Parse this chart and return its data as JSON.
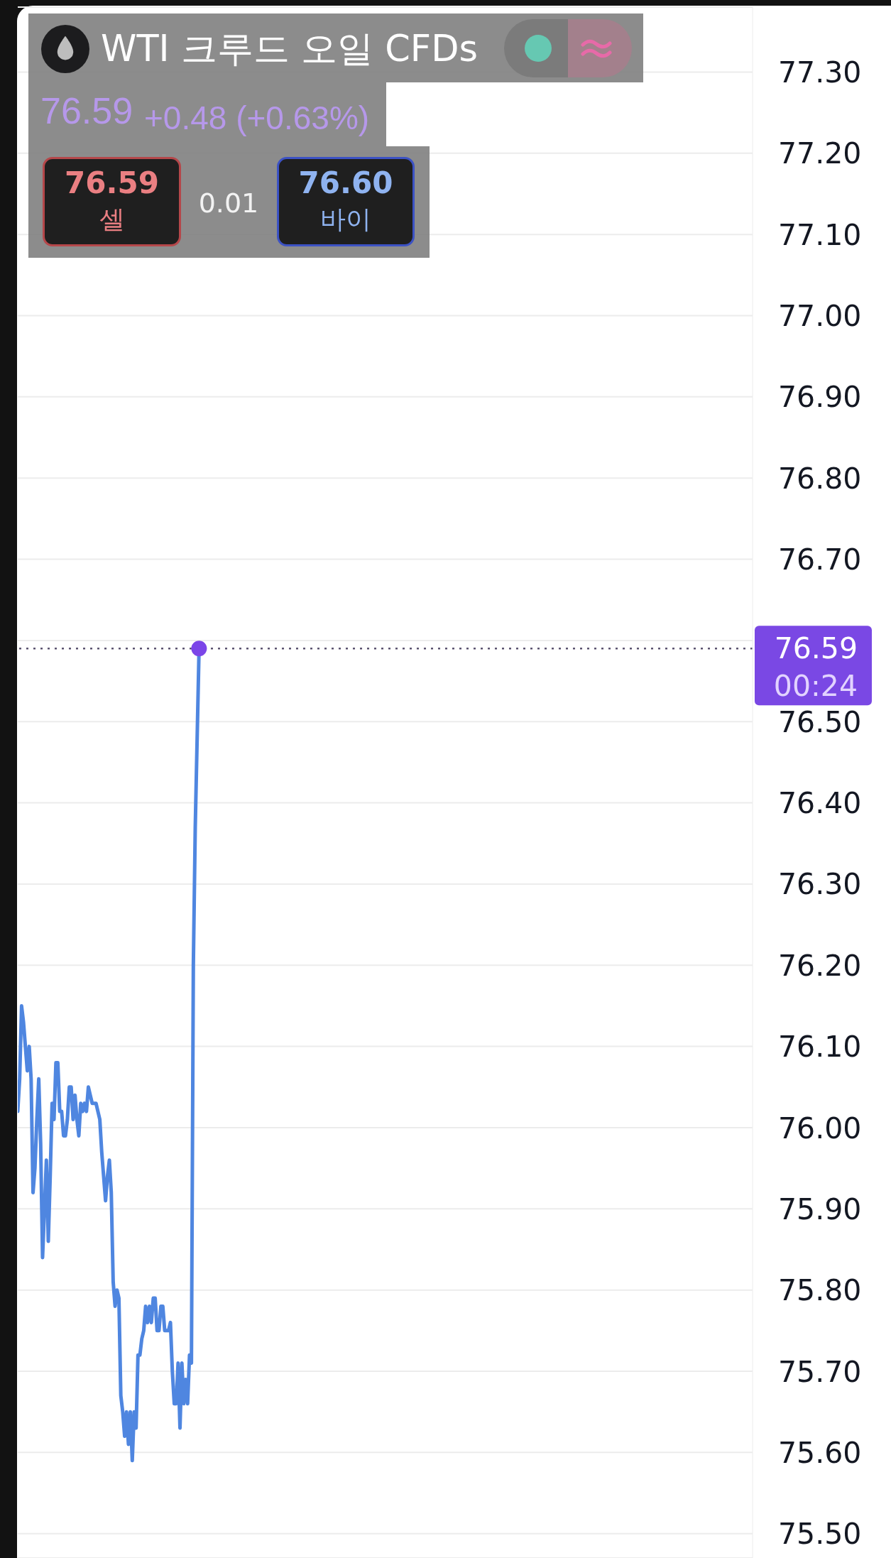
{
  "chart_data": {
    "type": "line",
    "title": "WTI 크루드 오일 CFDs",
    "annotations": [
      "76.59",
      "+0.48 (+0.63%)",
      "76.59",
      "셀",
      "0.01",
      "76.60",
      "바이"
    ],
    "categories": [
      null,
      null,
      null,
      null,
      null,
      null,
      null,
      null,
      null,
      null,
      null,
      null,
      null,
      null,
      null,
      null,
      null,
      null,
      null,
      null,
      null,
      null,
      null,
      null,
      null,
      null,
      null,
      null,
      null,
      null,
      null,
      null,
      null,
      null,
      null,
      null,
      null,
      null,
      null,
      null,
      null,
      null,
      null,
      null,
      null,
      null,
      null,
      null,
      null,
      null,
      null,
      null,
      null,
      null,
      null,
      null,
      null,
      null,
      null,
      null,
      null,
      null,
      null,
      null,
      null,
      null,
      null,
      null,
      null,
      null,
      null,
      null,
      null,
      null,
      null,
      null,
      null,
      null,
      null,
      null,
      null,
      null,
      null,
      null,
      null,
      null,
      null,
      null,
      null,
      null,
      null,
      null,
      null,
      null,
      null,
      null,
      null,
      null,
      null,
      null,
      null,
      null,
      null,
      null,
      null,
      null,
      null,
      null,
      null,
      null,
      null,
      null,
      null,
      null,
      null,
      null,
      null,
      null,
      null,
      null,
      null,
      null,
      null,
      null,
      null,
      null,
      null,
      null,
      null,
      null,
      null,
      null,
      null,
      null,
      null,
      null,
      null,
      null,
      null,
      null,
      null,
      null,
      null,
      null,
      null,
      null,
      null,
      null,
      null,
      null,
      null,
      null,
      null,
      null,
      null,
      null,
      null,
      null,
      null,
      null,
      null,
      null,
      null,
      null,
      null,
      null,
      null,
      null,
      null,
      null,
      null,
      null,
      null,
      null,
      null,
      null,
      null,
      null,
      null,
      null,
      null,
      null,
      null,
      null,
      null,
      null,
      null,
      null,
      null,
      null,
      null,
      null,
      null,
      null,
      null,
      null,
      null,
      null,
      null,
      null,
      null,
      null,
      null,
      null,
      null,
      null,
      null,
      null,
      null,
      null,
      null,
      null,
      null,
      null,
      null,
      null,
      null,
      null,
      null,
      null,
      null,
      null,
      null,
      null,
      null,
      null,
      null,
      null,
      null,
      null,
      null,
      null,
      null,
      null,
      null,
      null,
      null,
      null,
      null,
      null,
      null,
      null,
      null,
      null,
      null,
      null,
      null,
      null,
      null,
      null,
      null,
      null,
      null,
      null,
      null,
      null,
      null,
      null,
      null,
      null,
      null,
      null,
      null,
      null,
      null,
      null,
      null,
      null,
      null,
      null,
      null,
      null,
      null,
      null,
      null,
      null,
      null,
      null,
      null,
      null,
      null,
      null,
      null,
      null,
      null,
      null,
      null,
      null,
      null,
      null,
      null,
      null,
      null,
      null,
      null,
      null,
      null,
      null,
      null,
      null,
      null,
      null,
      null,
      null,
      null,
      null,
      null,
      null,
      null,
      null,
      null,
      null,
      null,
      null,
      null,
      null,
      null,
      null,
      null,
      null,
      null,
      null,
      null,
      null,
      null,
      null,
      null,
      null,
      null,
      null,
      null,
      null,
      null,
      null,
      null,
      null,
      null,
      null,
      null,
      null,
      null,
      null,
      null,
      null,
      null,
      null,
      null,
      null,
      null,
      null,
      null,
      null,
      null,
      null,
      null,
      null,
      null,
      null,
      null,
      null,
      null,
      null,
      null,
      null,
      null,
      null,
      null,
      null,
      null,
      null,
      null,
      null,
      null,
      null,
      null,
      null,
      null,
      null,
      null,
      null,
      null,
      null,
      null,
      null,
      null,
      null
    ],
    "series": [
      {
        "color": "#4f86e0",
        "values": [
          76.02,
          76.06,
          76.15,
          76.13,
          76.1,
          76.07,
          76.1,
          76.06,
          75.92,
          75.95,
          76.01,
          76.06,
          75.98,
          75.84,
          75.9,
          75.96,
          75.86,
          75.94,
          76.03,
          76.01,
          76.08,
          76.08,
          76.02,
          76.02,
          75.99,
          75.99,
          76.01,
          76.05,
          76.05,
          76.01,
          76.04,
          76.01,
          75.99,
          76.03,
          76.02,
          76.03,
          76.02,
          76.05,
          76.04,
          76.03,
          76.03,
          76.03,
          76.02,
          76.01,
          75.97,
          75.94,
          75.91,
          75.94,
          75.96,
          75.92,
          75.81,
          75.78,
          75.8,
          75.79,
          75.67,
          75.65,
          75.62,
          75.65,
          75.61,
          75.65,
          75.59,
          75.65,
          75.63,
          75.72,
          75.72,
          75.74,
          75.75,
          75.78,
          75.76,
          75.78,
          75.76,
          75.79,
          75.79,
          75.75,
          75.75,
          75.78,
          75.78,
          75.75,
          75.75,
          75.75,
          75.76,
          75.7,
          75.66,
          75.66,
          75.71,
          75.63,
          75.71,
          75.66,
          75.69,
          75.66,
          75.72,
          75.71,
          76.2,
          76.37,
          76.48,
          76.59,
          null,
          null,
          null,
          null,
          null,
          null,
          null,
          null,
          null,
          null,
          null,
          null,
          null,
          null,
          null,
          null,
          null,
          null,
          null,
          null,
          null,
          null,
          null,
          null,
          null,
          null,
          null,
          null,
          null,
          null,
          null,
          null,
          null,
          null,
          null,
          null,
          null,
          null,
          null,
          null,
          null,
          null,
          null,
          null,
          null,
          null,
          null,
          null,
          null,
          null,
          null,
          null,
          null,
          null,
          null,
          null,
          null,
          null,
          null,
          null,
          null,
          null,
          null,
          null,
          null,
          null,
          null,
          null,
          null,
          null,
          null,
          null,
          null,
          null,
          null,
          null,
          null,
          null,
          null,
          null,
          null,
          null,
          null,
          null,
          null,
          null,
          null,
          null,
          null,
          null,
          null,
          null,
          null,
          null,
          null,
          null,
          null,
          null,
          null,
          null,
          null,
          null,
          null,
          null,
          null,
          null,
          null,
          null,
          null,
          null,
          null,
          null,
          null,
          null,
          null,
          null,
          null,
          null,
          null,
          null,
          null,
          null,
          null,
          null,
          null,
          null,
          null,
          null,
          null,
          null,
          null,
          null,
          null,
          null,
          null,
          null,
          null,
          null,
          null,
          null,
          null,
          null,
          null,
          null,
          null,
          null,
          null,
          null,
          null,
          null,
          null,
          null,
          null,
          null,
          null,
          null,
          null,
          null,
          null,
          null,
          null,
          null,
          null,
          null,
          null,
          null,
          null,
          null,
          null,
          null,
          null,
          null,
          null,
          null,
          null,
          null,
          null,
          null,
          null,
          null,
          null,
          null,
          null,
          null,
          null,
          null,
          null,
          null,
          null,
          null,
          null,
          null,
          null,
          null,
          null,
          null,
          null,
          null,
          null,
          null,
          null,
          null,
          null,
          null,
          null,
          null,
          null,
          null,
          null,
          null,
          null,
          null,
          null,
          null,
          null,
          null,
          null,
          null,
          null,
          null,
          null,
          null,
          null,
          null,
          null,
          null,
          null,
          null,
          null,
          null,
          null,
          null,
          null,
          null,
          null,
          null,
          null,
          null,
          null,
          null,
          null,
          null,
          null,
          null,
          null,
          null,
          null,
          null,
          null,
          null,
          null,
          null,
          null,
          null,
          null,
          null,
          null,
          null,
          null,
          null,
          null,
          null,
          null,
          null,
          null,
          null,
          null,
          null,
          null,
          null,
          null,
          null,
          null,
          null,
          null,
          null,
          null,
          null,
          null,
          null,
          null,
          null,
          null,
          null,
          null,
          null,
          null,
          null,
          null,
          null
        ]
      },
      {
        "type": "scatter",
        "color": "#7b45e8",
        "marker": "circle",
        "values": [
          null,
          null,
          null,
          null,
          null,
          null,
          null,
          null,
          null,
          null,
          null,
          null,
          null,
          null,
          null,
          null,
          null,
          null,
          null,
          null,
          null,
          null,
          null,
          null,
          null,
          null,
          null,
          null,
          null,
          null,
          null,
          null,
          null,
          null,
          null,
          null,
          null,
          null,
          null,
          null,
          null,
          null,
          null,
          null,
          null,
          null,
          null,
          null,
          null,
          null,
          null,
          null,
          null,
          null,
          null,
          null,
          null,
          null,
          null,
          null,
          null,
          null,
          null,
          null,
          null,
          null,
          null,
          null,
          null,
          null,
          null,
          null,
          null,
          null,
          null,
          null,
          null,
          null,
          null,
          null,
          null,
          null,
          null,
          null,
          null,
          null,
          null,
          null,
          null,
          null,
          null,
          null,
          null,
          null,
          null,
          76.59,
          null,
          null,
          null,
          null,
          null,
          null,
          null,
          null,
          null,
          null,
          null,
          null,
          null,
          null,
          null,
          null,
          null,
          null,
          null,
          null,
          null,
          null,
          null,
          null,
          null,
          null,
          null,
          null,
          null,
          null,
          null,
          null,
          null,
          null,
          null,
          null,
          null,
          null,
          null,
          null,
          null,
          null,
          null,
          null,
          null,
          null,
          null,
          null,
          null,
          null,
          null,
          null,
          null,
          null,
          null,
          null,
          null,
          null,
          null,
          null,
          null,
          null,
          null,
          null,
          null,
          null,
          null,
          null,
          null,
          null,
          null,
          null,
          null,
          null,
          null,
          null,
          null,
          null,
          null,
          null,
          null,
          null,
          null,
          null,
          null,
          null,
          null,
          null,
          null,
          null,
          null,
          null,
          null,
          null,
          null,
          null,
          null,
          null,
          null,
          null,
          null,
          null,
          null,
          null,
          null,
          null,
          null,
          null,
          null,
          null,
          null,
          null,
          null,
          null,
          null,
          null,
          null,
          null,
          null,
          null,
          null,
          null,
          null,
          null,
          null,
          null,
          null,
          null,
          null,
          null,
          null,
          null,
          null,
          null,
          null,
          null,
          null,
          null,
          null,
          null,
          null,
          null,
          null,
          null,
          null,
          null,
          null,
          null,
          null,
          null,
          null,
          null,
          null,
          null,
          null,
          null,
          null,
          null,
          null,
          null,
          null,
          null,
          null,
          null,
          null,
          null,
          null,
          null,
          null,
          null,
          null,
          null,
          null,
          null,
          null,
          null,
          null,
          null,
          null,
          null,
          null,
          null,
          null,
          null,
          null,
          null,
          null,
          null,
          null,
          null,
          null,
          null,
          null,
          null,
          null,
          null,
          null,
          null,
          null,
          null,
          null,
          null,
          null,
          null,
          null,
          null,
          null,
          null,
          null,
          null,
          null,
          null,
          null,
          null,
          null,
          null,
          null,
          null,
          null,
          null,
          null,
          null,
          null,
          null,
          null,
          null,
          null,
          null,
          null,
          null,
          null,
          null,
          null,
          null,
          null,
          null,
          null,
          null,
          null,
          null,
          null,
          null,
          null,
          null,
          null,
          null,
          null,
          null,
          null,
          null,
          null,
          null,
          null,
          null,
          null,
          null,
          null,
          null,
          null,
          null,
          null,
          null,
          null,
          null,
          null,
          null,
          null,
          null,
          null,
          null,
          null,
          null,
          null,
          null,
          null,
          null,
          null,
          null,
          null,
          null,
          null,
          null,
          null,
          null,
          null,
          null,
          null,
          null,
          null,
          null
        ]
      }
    ],
    "ylim": [
      75.47,
      77.38
    ],
    "yticks": [
      {
        "value": 75.5,
        "label": "75.50"
      },
      {
        "value": 75.6,
        "label": "75.60"
      },
      {
        "value": 75.7,
        "label": "75.70"
      },
      {
        "value": 75.8,
        "label": "75.80"
      },
      {
        "value": 75.9,
        "label": "75.90"
      },
      {
        "value": 76.0,
        "label": "76.00"
      },
      {
        "value": 76.1,
        "label": "76.10"
      },
      {
        "value": 76.2,
        "label": "76.20"
      },
      {
        "value": 76.3,
        "label": "76.30"
      },
      {
        "value": 76.4,
        "label": "76.40"
      },
      {
        "value": 76.5,
        "label": "76.50"
      },
      {
        "value": 76.6,
        "label": null
      },
      {
        "value": 76.7,
        "label": "76.70"
      },
      {
        "value": 76.8,
        "label": "76.80"
      },
      {
        "value": 76.9,
        "label": "76.90"
      },
      {
        "value": 77.0,
        "label": "77.00"
      },
      {
        "value": 77.1,
        "label": "77.10"
      },
      {
        "value": 77.2,
        "label": "77.20"
      },
      {
        "value": 77.3,
        "label": "77.30"
      }
    ],
    "grid": "y",
    "tick_labels": "y",
    "ref_lines": [
      {
        "axis": "y",
        "value": 76.59,
        "label": "76.59 00:24",
        "color": "#5c5470",
        "line_style": "dotted"
      }
    ]
  }
}
